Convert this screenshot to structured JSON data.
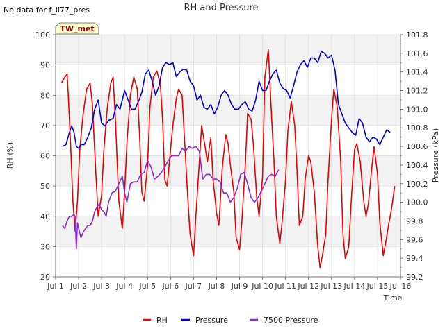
{
  "chart_data": {
    "type": "line",
    "title": "RH and Pressure",
    "note": "No data for f_li77_pres",
    "station_label": "TW_met",
    "xlabel": "Time",
    "ylabel_left": "RH (%)",
    "ylabel_right": "Pressure (kPa)",
    "xlim": [
      0,
      15
    ],
    "ylim_left": [
      20,
      100
    ],
    "ylim_right": [
      99.2,
      101.8
    ],
    "x_ticks": [
      0,
      1,
      2,
      3,
      4,
      5,
      6,
      7,
      8,
      9,
      10,
      11,
      12,
      13,
      14,
      15
    ],
    "x_tick_labels": [
      "Jul 1",
      "Jul 2",
      "Jul 3",
      "Jul 4",
      "Jul 5",
      "Jul 6",
      "Jul 7",
      "Jul 8",
      "Jul 9",
      "Jul 10",
      "Jul 11",
      "Jul 12",
      "Jul 13",
      "Jul 14",
      "Jul 15",
      "Jul 16"
    ],
    "y_ticks_left": [
      20,
      30,
      40,
      50,
      60,
      70,
      80,
      90,
      100
    ],
    "y_ticks_right": [
      99.2,
      99.4,
      99.6,
      99.8,
      100.0,
      100.2,
      100.4,
      100.6,
      100.8,
      101.0,
      101.2,
      101.4,
      101.6,
      101.8
    ],
    "y_tick_labels_right": [
      "99.2",
      "99.4",
      "99.6",
      "99.8",
      "100.0",
      "100.2",
      "100.4",
      "100.6",
      "100.8",
      "101.0",
      "101.2",
      "101.4",
      "101.6",
      "101.8"
    ],
    "grid": true,
    "legend_position": "bottom",
    "series": [
      {
        "name": "RH",
        "axis": "left",
        "color": "#ee0000",
        "x": [
          0.25,
          0.4,
          0.5,
          0.55,
          0.65,
          0.75,
          0.85,
          0.95,
          1.05,
          1.2,
          1.35,
          1.5,
          1.6,
          1.75,
          1.85,
          2.0,
          2.1,
          2.25,
          2.4,
          2.5,
          2.6,
          2.75,
          2.9,
          3.0,
          3.1,
          3.25,
          3.4,
          3.55,
          3.65,
          3.75,
          3.85,
          4.0,
          4.1,
          4.25,
          4.4,
          4.55,
          4.65,
          4.75,
          4.85,
          5.0,
          5.1,
          5.25,
          5.35,
          5.5,
          5.6,
          5.75,
          5.85,
          6.0,
          6.1,
          6.25,
          6.35,
          6.5,
          6.6,
          6.75,
          6.85,
          7.0,
          7.1,
          7.25,
          7.4,
          7.5,
          7.6,
          7.75,
          7.85,
          8.0,
          8.1,
          8.25,
          8.35,
          8.5,
          8.6,
          8.75,
          8.85,
          9.0,
          9.1,
          9.25,
          9.4,
          9.5,
          9.6,
          9.75,
          9.85,
          10.0,
          10.1,
          10.25,
          10.4,
          10.5,
          10.6,
          10.75,
          10.85,
          11.0,
          11.1,
          11.25,
          11.4,
          11.5,
          11.6,
          11.75,
          11.85,
          12.0,
          12.1,
          12.25,
          12.4,
          12.5,
          12.6,
          12.75,
          12.85,
          13.0,
          13.1,
          13.25,
          13.4,
          13.5,
          13.6,
          13.75,
          13.85,
          14.0,
          14.1,
          14.25,
          14.35,
          14.5,
          14.6,
          14.75
        ],
        "values": [
          84,
          86,
          87,
          80,
          64,
          45,
          35,
          45,
          62,
          74,
          82,
          84,
          77,
          54,
          40,
          47,
          62,
          76,
          84,
          86,
          72,
          45,
          36,
          48,
          64,
          80,
          86,
          82,
          67,
          48,
          45,
          57,
          76,
          86,
          88,
          84,
          72,
          52,
          50,
          62,
          70,
          79,
          82,
          80,
          66,
          46,
          34,
          27,
          40,
          58,
          70,
          63,
          58,
          66,
          52,
          41,
          37,
          56,
          67,
          64,
          57,
          48,
          33,
          29,
          38,
          57,
          74,
          72,
          64,
          46,
          40,
          53,
          86,
          95,
          72,
          58,
          40,
          31,
          38,
          52,
          68,
          78,
          70,
          55,
          37,
          40,
          52,
          60,
          58,
          48,
          30,
          23,
          27,
          34,
          52,
          72,
          82,
          76,
          58,
          34,
          26,
          30,
          44,
          62,
          64,
          58,
          45,
          40,
          44,
          56,
          63,
          54,
          38,
          27,
          31,
          38,
          42,
          50
        ]
      },
      {
        "name": "Pressure",
        "axis": "right",
        "color": "#0000dd",
        "x": [
          0.3,
          0.45,
          0.6,
          0.7,
          0.8,
          0.9,
          1.0,
          1.1,
          1.25,
          1.4,
          1.55,
          1.7,
          1.85,
          2.0,
          2.15,
          2.3,
          2.5,
          2.65,
          2.8,
          3.0,
          3.15,
          3.3,
          3.45,
          3.6,
          3.75,
          3.9,
          4.05,
          4.2,
          4.35,
          4.5,
          4.65,
          4.8,
          4.95,
          5.1,
          5.25,
          5.4,
          5.55,
          5.7,
          5.85,
          6.0,
          6.15,
          6.3,
          6.45,
          6.6,
          6.75,
          6.9,
          7.05,
          7.2,
          7.35,
          7.5,
          7.65,
          7.8,
          7.95,
          8.1,
          8.25,
          8.4,
          8.55,
          8.7,
          8.85,
          9.0,
          9.15,
          9.3,
          9.45,
          9.6,
          9.75,
          9.9,
          10.05,
          10.2,
          10.35,
          10.5,
          10.65,
          10.8,
          10.95,
          11.1,
          11.25,
          11.4,
          11.55,
          11.7,
          11.85,
          12.0,
          12.15,
          12.3,
          12.45,
          12.6,
          12.75,
          12.9,
          13.05,
          13.2,
          13.35,
          13.5,
          13.65,
          13.8,
          13.95,
          14.1,
          14.25,
          14.4,
          14.55
        ],
        "values": [
          100.6,
          100.62,
          100.75,
          100.82,
          100.75,
          100.6,
          100.58,
          100.62,
          100.62,
          100.7,
          100.8,
          101.0,
          101.1,
          100.85,
          100.82,
          100.88,
          100.9,
          101.05,
          101.0,
          101.2,
          101.1,
          101.0,
          101.0,
          101.08,
          101.18,
          101.38,
          101.42,
          101.3,
          101.15,
          101.25,
          101.45,
          101.5,
          101.48,
          101.5,
          101.35,
          101.4,
          101.43,
          101.42,
          101.3,
          101.25,
          101.1,
          101.15,
          101.02,
          101.0,
          101.05,
          100.95,
          101.02,
          101.15,
          101.2,
          101.15,
          101.05,
          101.0,
          101.0,
          101.05,
          101.08,
          101.0,
          100.98,
          101.1,
          101.3,
          101.2,
          101.2,
          101.3,
          101.38,
          101.42,
          101.28,
          101.22,
          101.2,
          101.12,
          101.25,
          101.4,
          101.48,
          101.52,
          101.45,
          101.55,
          101.55,
          101.5,
          101.62,
          101.6,
          101.55,
          101.58,
          101.42,
          101.05,
          100.95,
          100.85,
          100.8,
          100.75,
          100.72,
          100.9,
          100.85,
          100.7,
          100.65,
          100.7,
          100.68,
          100.62,
          100.7,
          100.78,
          100.75
        ]
      },
      {
        "name": "7500 Pressure",
        "axis": "right",
        "color": "#8a2be2",
        "x": [
          0.3,
          0.4,
          0.5,
          0.6,
          0.7,
          0.8,
          0.85,
          0.9,
          0.95,
          1.0,
          1.1,
          1.2,
          1.3,
          1.4,
          1.5,
          1.6,
          1.7,
          1.8,
          1.9,
          2.0,
          2.1,
          2.2,
          2.3,
          2.45,
          2.6,
          2.75,
          2.9,
          3.0,
          3.1,
          3.25,
          3.4,
          3.55,
          3.7,
          3.85,
          4.0,
          4.15,
          4.3,
          4.45,
          4.6,
          4.75,
          4.9,
          5.05,
          5.2,
          5.35,
          5.5,
          5.65,
          5.8,
          5.95,
          6.1,
          6.25,
          6.4,
          6.55,
          6.7,
          6.85,
          7.0,
          7.15,
          7.3,
          7.45,
          7.6,
          7.75,
          7.9,
          8.05,
          8.2,
          8.35,
          8.5,
          8.65,
          8.8,
          8.95,
          9.1,
          9.25,
          9.4,
          9.55,
          9.7
        ],
        "values": [
          99.75,
          99.72,
          99.8,
          99.85,
          99.85,
          99.87,
          99.85,
          99.5,
          99.78,
          99.72,
          99.62,
          99.68,
          99.72,
          99.75,
          99.75,
          99.8,
          99.9,
          99.95,
          99.98,
          99.92,
          99.9,
          99.85,
          100.0,
          100.1,
          100.12,
          100.2,
          100.28,
          100.1,
          100.0,
          100.2,
          100.22,
          100.22,
          100.3,
          100.32,
          100.45,
          100.38,
          100.25,
          100.28,
          100.32,
          100.38,
          100.45,
          100.5,
          100.5,
          100.5,
          100.58,
          100.55,
          100.6,
          100.58,
          100.6,
          100.55,
          100.25,
          100.3,
          100.3,
          100.25,
          100.25,
          100.22,
          100.1,
          100.1,
          100.0,
          100.05,
          100.15,
          100.3,
          100.32,
          100.2,
          100.05,
          100.0,
          100.05,
          100.12,
          100.2,
          100.28,
          100.3,
          100.28,
          100.35
        ]
      }
    ]
  }
}
